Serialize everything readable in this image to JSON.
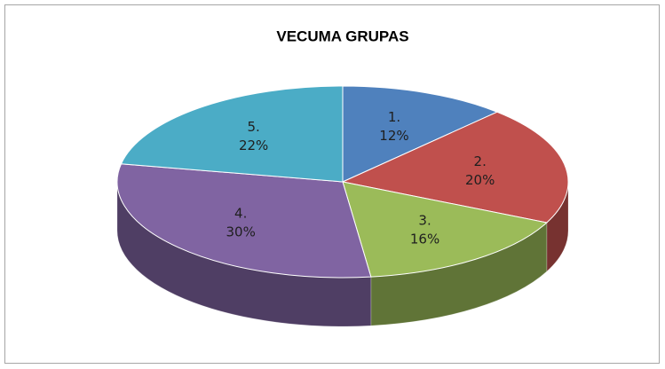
{
  "chart_data": {
    "type": "pie",
    "title": "VECUMA GRUPAS",
    "categories": [
      "1.",
      "2.",
      "3.",
      "4.",
      "5."
    ],
    "values": [
      12,
      20,
      16,
      30,
      22
    ],
    "value_labels": [
      "12%",
      "20%",
      "16%",
      "30%",
      "22%"
    ],
    "colors": [
      "#4f81bd",
      "#c0504d",
      "#9bbb59",
      "#8064a2",
      "#4bacc6"
    ]
  }
}
